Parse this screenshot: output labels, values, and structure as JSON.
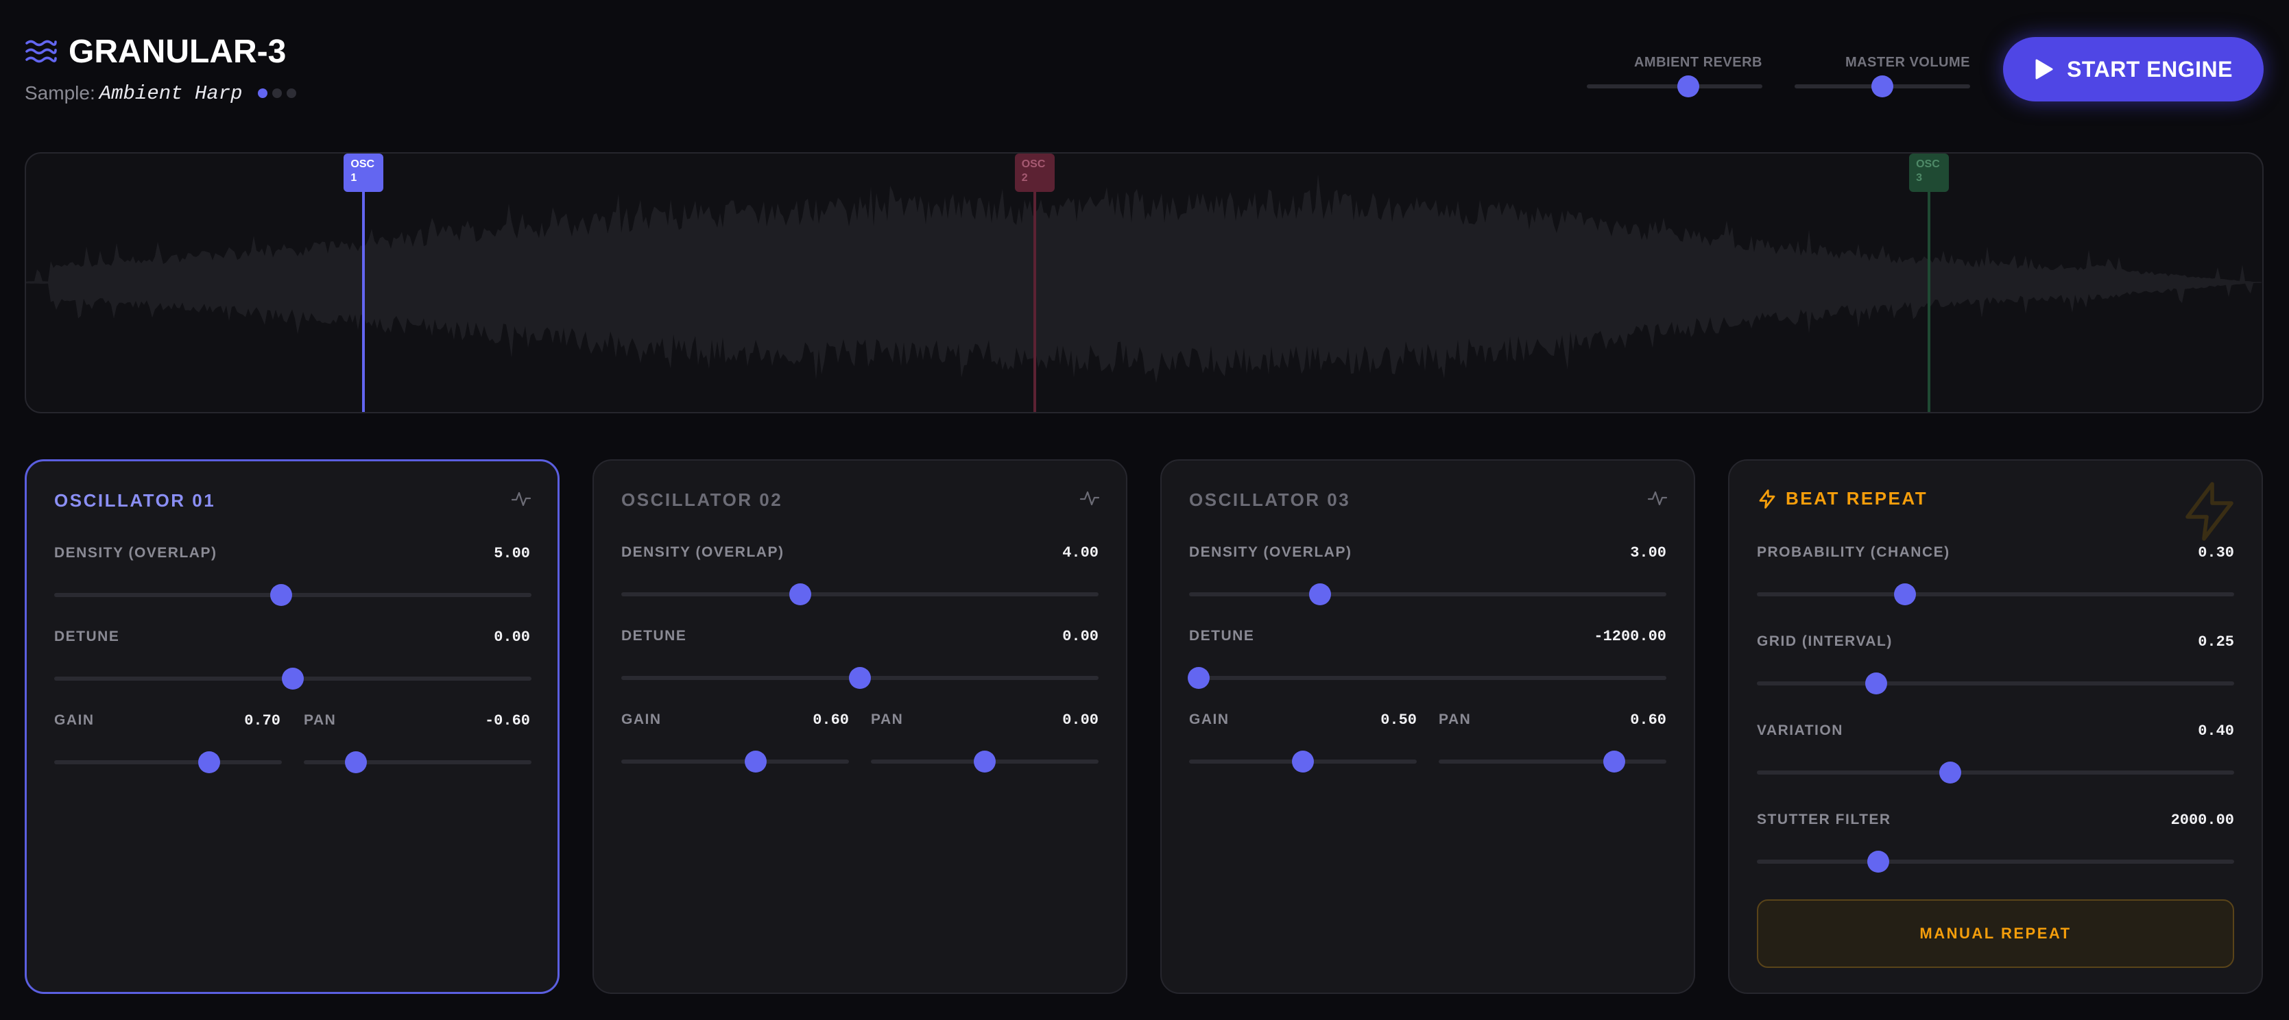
{
  "header": {
    "logo_icon": "waves-icon",
    "title": "GRANULAR-3",
    "sample_label": "Sample:",
    "sample_name": "Ambient Harp",
    "sample_dots_active": 1,
    "sample_dots_total": 3,
    "ambient_reverb": {
      "label": "AMBIENT REVERB",
      "level": 0.58
    },
    "master_volume": {
      "label": "MASTER VOLUME",
      "level": 0.5
    },
    "start_button": {
      "label": "START ENGINE",
      "icon": "play-icon"
    }
  },
  "waveform": {
    "markers": [
      {
        "line1": "OSC",
        "line2": "1",
        "color": "#6366f1",
        "text_color": "#ffffff",
        "position": 0.151
      },
      {
        "line1": "OSC",
        "line2": "2",
        "color": "#5c2233",
        "text_color": "#a65a72",
        "position": 0.451
      },
      {
        "line1": "OSC",
        "line2": "3",
        "color": "#1f4a33",
        "text_color": "#4f8a68",
        "position": 0.851
      }
    ]
  },
  "oscillators": [
    {
      "title": "OSCILLATOR 01",
      "title_color": "#8b8ff5",
      "active": true,
      "icon": "activity-icon",
      "density": {
        "label": "DENSITY (OVERLAP)",
        "value": "5.00",
        "level": 0.475
      },
      "detune": {
        "label": "DETUNE",
        "value": "0.00",
        "level": 0.5
      },
      "gain": {
        "label": "GAIN",
        "value": "0.70",
        "level": 0.68
      },
      "pan": {
        "label": "PAN",
        "value": "-0.60",
        "level": 0.23
      }
    },
    {
      "title": "OSCILLATOR 02",
      "title_color": "#6c6c76",
      "active": false,
      "icon": "activity-icon",
      "density": {
        "label": "DENSITY (OVERLAP)",
        "value": "4.00",
        "level": 0.375
      },
      "detune": {
        "label": "DETUNE",
        "value": "0.00",
        "level": 0.5
      },
      "gain": {
        "label": "GAIN",
        "value": "0.60",
        "level": 0.59
      },
      "pan": {
        "label": "PAN",
        "value": "0.00",
        "level": 0.5
      }
    },
    {
      "title": "OSCILLATOR 03",
      "title_color": "#6c6c76",
      "active": false,
      "icon": "activity-icon",
      "density": {
        "label": "DENSITY (OVERLAP)",
        "value": "3.00",
        "level": 0.275
      },
      "detune": {
        "label": "DETUNE",
        "value": "-1200.00",
        "level": 0.02
      },
      "gain": {
        "label": "GAIN",
        "value": "0.50",
        "level": 0.5
      },
      "pan": {
        "label": "PAN",
        "value": "0.60",
        "level": 0.77
      }
    }
  ],
  "beat_repeat": {
    "title": "BEAT REPEAT",
    "title_color": "#f59e0b",
    "icon": "lightning-bolt-icon",
    "controls": [
      {
        "label": "PROBABILITY (CHANCE)",
        "value": "0.30",
        "level": 0.31
      },
      {
        "label": "GRID (INTERVAL)",
        "value": "0.25",
        "level": 0.25
      },
      {
        "label": "VARIATION",
        "value": "0.40",
        "level": 0.405
      },
      {
        "label": "STUTTER FILTER",
        "value": "2000.00",
        "level": 0.255
      }
    ],
    "manual_button": "MANUAL REPEAT"
  },
  "colors": {
    "accent": "#6366f1",
    "button": "#4f46e5",
    "warning": "#f59e0b",
    "background": "#0b0b0f",
    "panel": "#17171b"
  }
}
